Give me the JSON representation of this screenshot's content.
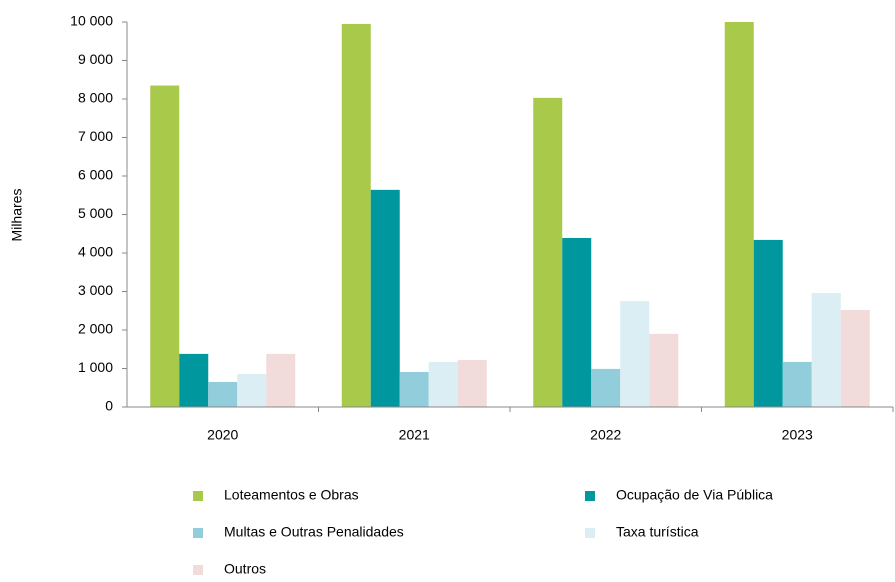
{
  "chart_data": {
    "type": "bar",
    "y_label": "Milhares",
    "categories": [
      "2020",
      "2021",
      "2022",
      "2023"
    ],
    "series": [
      {
        "name": "Loteamentos e Obras",
        "color": "#a9c94a",
        "values": [
          8350,
          9950,
          8030,
          10000
        ]
      },
      {
        "name": "Ocupação de Via Pública",
        "color": "#00979f",
        "values": [
          1380,
          5640,
          4390,
          4340
        ]
      },
      {
        "name": "Multas e Outras Penalidades",
        "color": "#92cddc",
        "values": [
          650,
          910,
          990,
          1170
        ]
      },
      {
        "name": "Taxa turística",
        "color": "#dbeef4",
        "values": [
          860,
          1170,
          2750,
          2960
        ]
      },
      {
        "name": "Outros",
        "color": "#f2dcdb",
        "values": [
          1380,
          1220,
          1900,
          2520
        ]
      }
    ],
    "ylim": [
      0,
      10000
    ],
    "yticks": [
      0,
      {
        "value": 1000,
        "label": "1 000"
      },
      {
        "value": 2000,
        "label": "2 000"
      },
      {
        "value": 3000,
        "label": "3 000"
      },
      {
        "value": 4000,
        "label": "4 000"
      },
      {
        "value": 5000,
        "label": "5 000"
      },
      {
        "value": 6000,
        "label": "6 000"
      },
      {
        "value": 7000,
        "label": "7 000"
      },
      {
        "value": 8000,
        "label": "8 000"
      },
      {
        "value": 9000,
        "label": "9 000"
      },
      {
        "value": 10000,
        "label": "10 000"
      }
    ],
    "grid": false
  }
}
